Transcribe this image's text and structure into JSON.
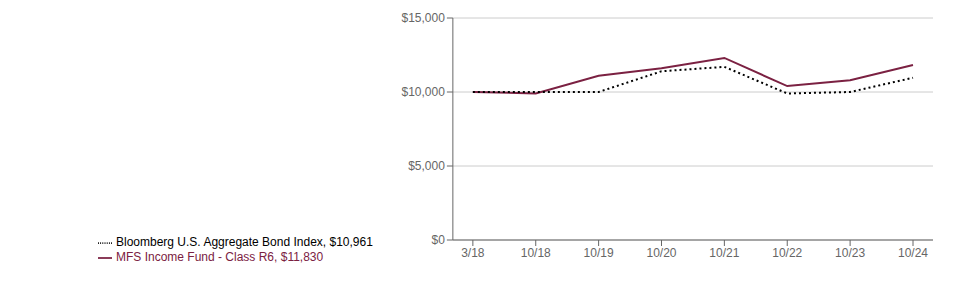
{
  "chart_data": {
    "type": "line",
    "categories": [
      "3/18",
      "10/18",
      "10/19",
      "10/20",
      "10/21",
      "10/22",
      "10/23",
      "10/24"
    ],
    "series": [
      {
        "name": "MFS Income Fund - Class R6, $11,830",
        "color": "#7b2142",
        "line_style": "solid",
        "values": [
          10000,
          9900,
          11100,
          11600,
          12300,
          10400,
          10800,
          11830
        ]
      },
      {
        "name": "Bloomberg U.S. Aggregate Bond Index, $10,961",
        "color": "#000000",
        "line_style": "dotted",
        "values": [
          10000,
          10000,
          10000,
          11400,
          11700,
          9900,
          10000,
          10961
        ]
      }
    ],
    "ylim": [
      0,
      15000
    ],
    "yticks": [
      {
        "value": 0,
        "label": "$0"
      },
      {
        "value": 5000,
        "label": "$5,000"
      },
      {
        "value": 10000,
        "label": "$10,000"
      },
      {
        "value": 15000,
        "label": "$15,000"
      }
    ],
    "grid": "y",
    "legend": "bottom"
  }
}
